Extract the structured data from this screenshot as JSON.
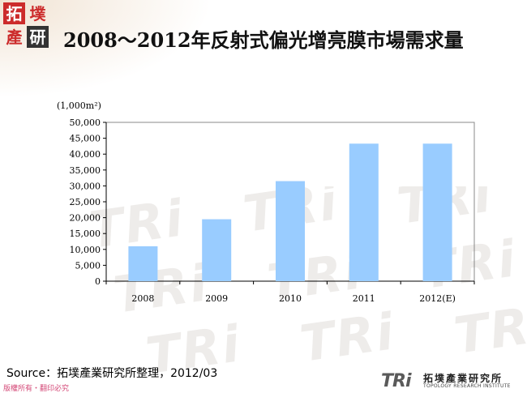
{
  "logo": {
    "chars": [
      "拓",
      "墣",
      "產",
      "研"
    ],
    "colors": {
      "red": "#cc2b2b",
      "white_text": "#ffffff",
      "dark": "#333333"
    }
  },
  "title": "2008～2012年反射式偏光增亮膜市場需求量",
  "chart_data": {
    "type": "bar",
    "categories": [
      "2008",
      "2009",
      "2010",
      "2011",
      "2012(E)"
    ],
    "values": [
      11000,
      19500,
      31500,
      43300,
      43300
    ],
    "ylabel": "(1,000m²)",
    "ylim": [
      0,
      50000
    ],
    "yticks": [
      "0",
      "5,000",
      "10,000",
      "15,000",
      "20,000",
      "25,000",
      "30,000",
      "35,000",
      "40,000",
      "45,000",
      "50,000"
    ],
    "grid": false,
    "bar_color": "#99ccff"
  },
  "footer": {
    "source": "Source：拓墣產業研究所整理，2012/03",
    "copyright": "版權所有・翻印必究"
  },
  "brand": {
    "mark": "TRi",
    "name": "拓墣產業研究所",
    "subtitle": "TOPOLOGY RESEARCH INSTITUTE"
  },
  "watermark_text": "TRi"
}
